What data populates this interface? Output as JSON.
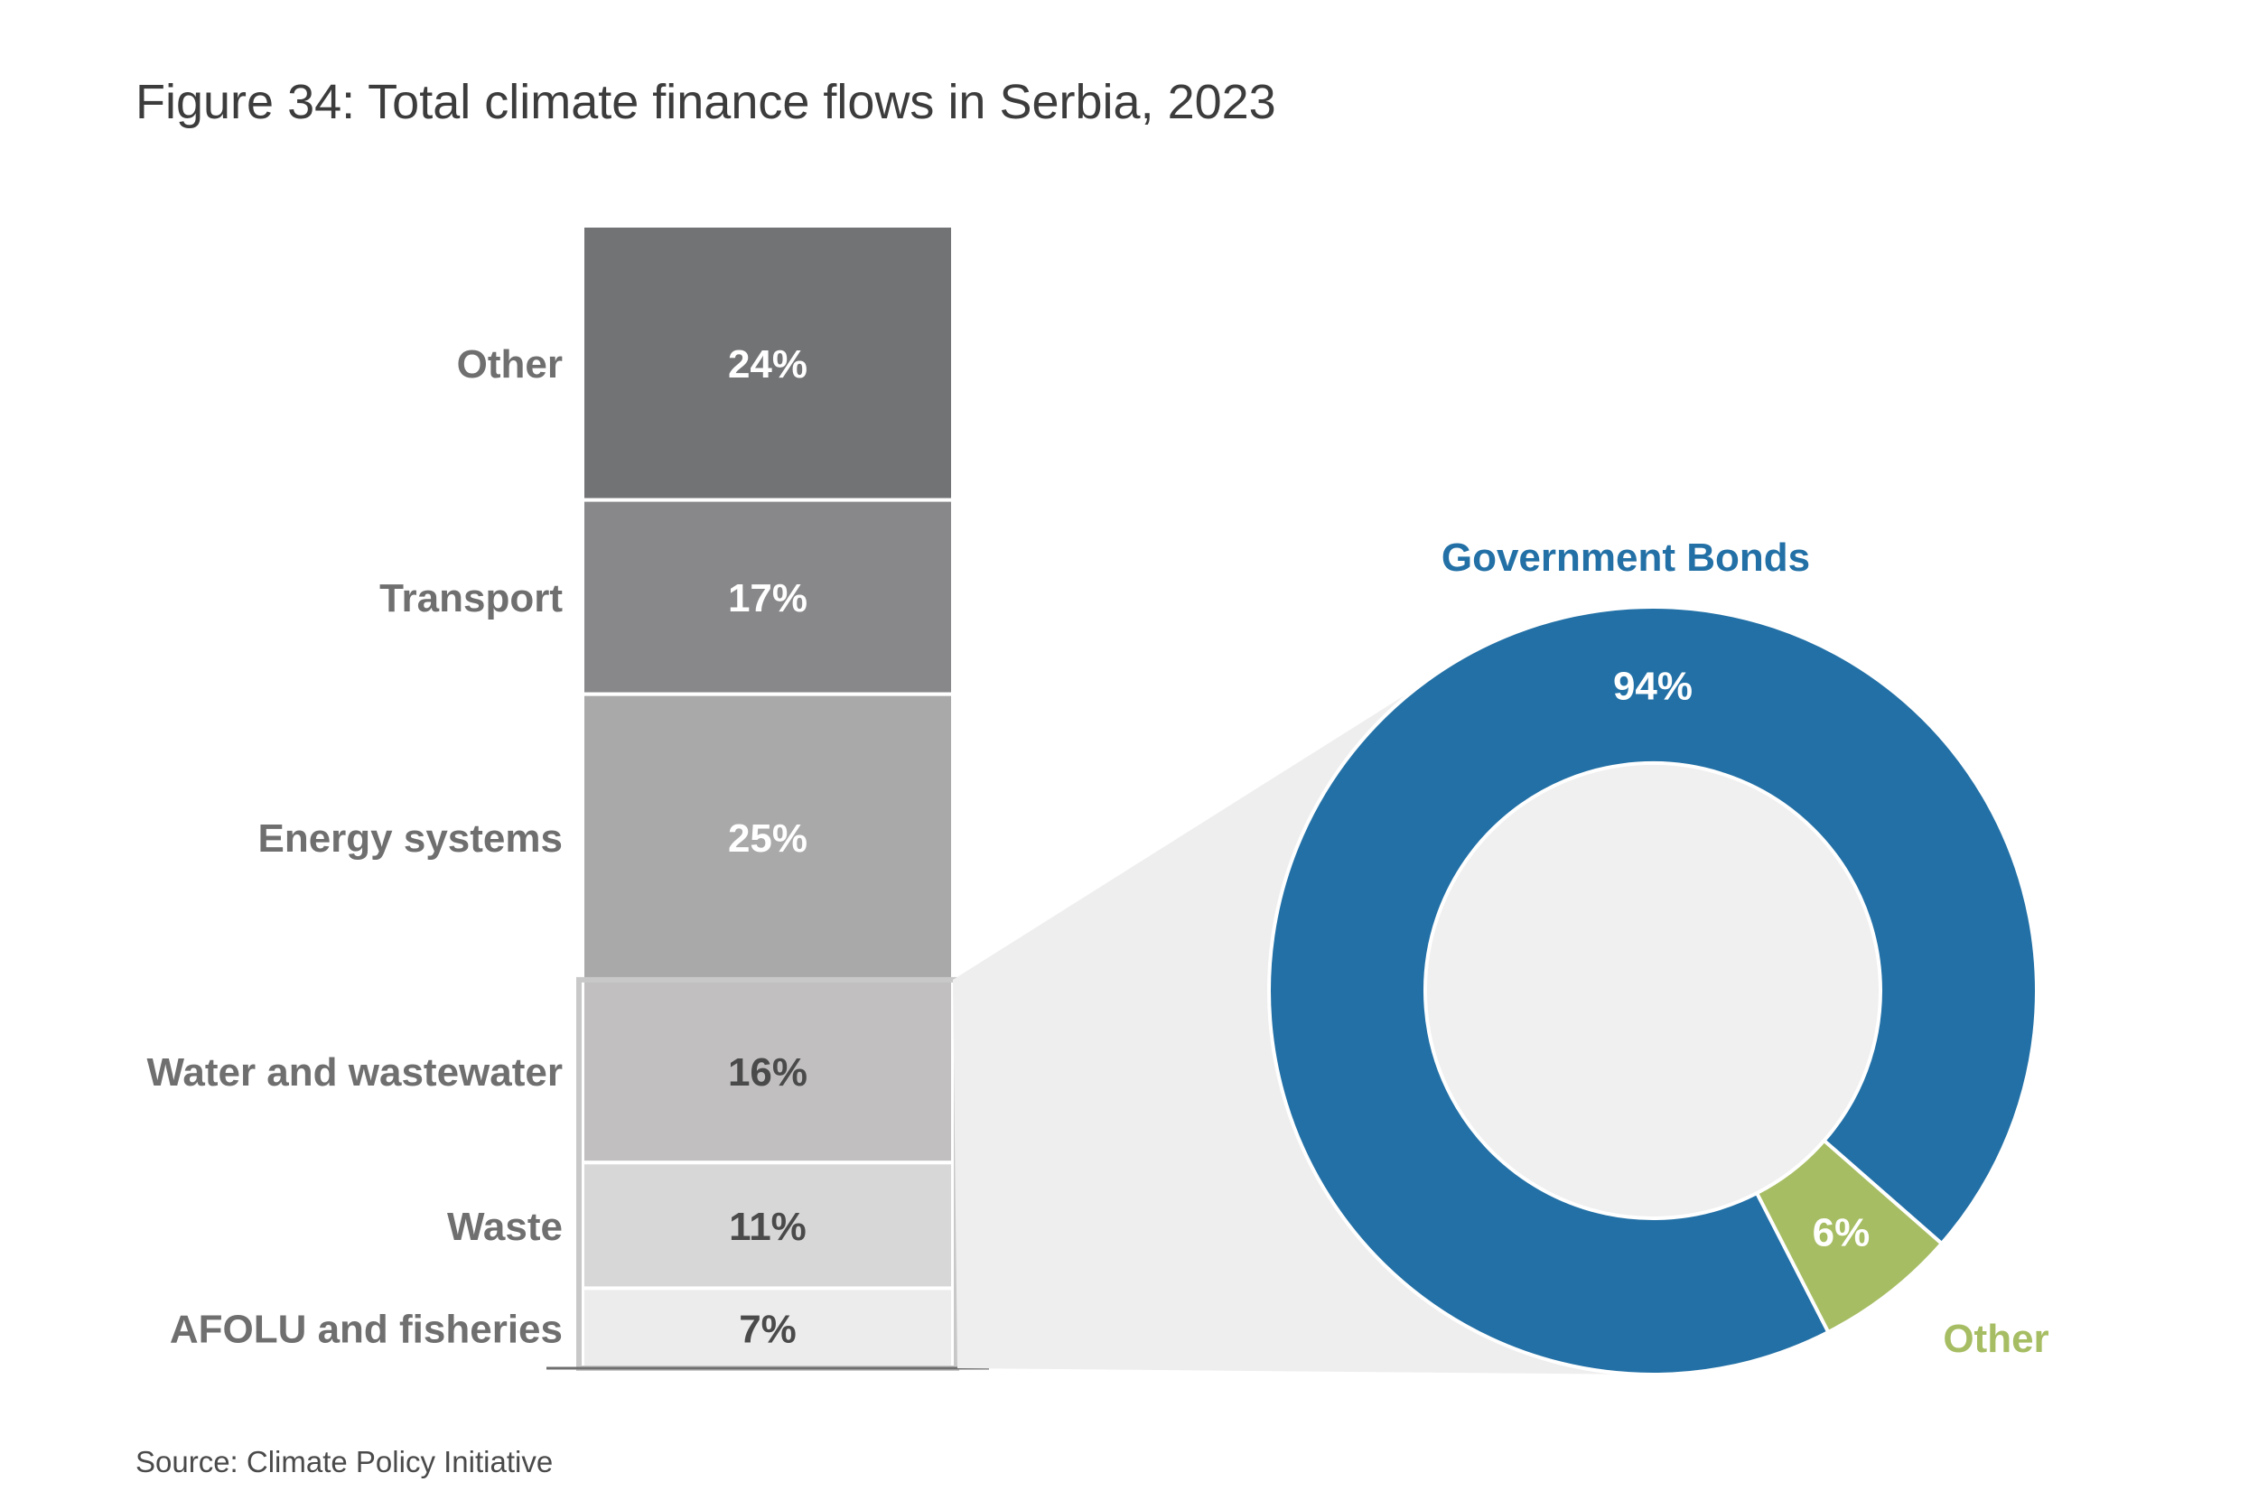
{
  "title": "Figure 34: Total climate finance flows in Serbia, 2023",
  "source": "Source: Climate Policy Initiative",
  "chart_data": [
    {
      "type": "bar",
      "stacked": true,
      "title": "",
      "xlabel": "",
      "ylabel": "",
      "ylim": [
        0,
        100
      ],
      "categories": [
        "Other",
        "Transport",
        "Energy systems",
        "Water and wastewater",
        "Waste",
        "AFOLU and fisheries"
      ],
      "values": [
        24,
        17,
        25,
        16,
        11,
        7
      ],
      "value_labels": [
        "24%",
        "17%",
        "25%",
        "16%",
        "11%",
        "7%"
      ],
      "colors": [
        "#727375",
        "#88888a",
        "#a9a9a9",
        "#c1bfc0",
        "#d7d7d7",
        "#ececec"
      ],
      "label_colors": [
        "#ffffff",
        "#ffffff",
        "#ffffff",
        "#4a4a4a",
        "#4a4a4a",
        "#4a4a4a"
      ],
      "highlighted_categories": [
        "Water and wastewater",
        "Waste",
        "AFOLU and fisheries"
      ]
    },
    {
      "type": "pie",
      "donut": true,
      "title": "",
      "categories": [
        "Government Bonds",
        "Other"
      ],
      "values": [
        94,
        6
      ],
      "value_labels": [
        "94%",
        "6%"
      ],
      "colors": [
        "#2270a6",
        "#a6bd63"
      ]
    }
  ]
}
